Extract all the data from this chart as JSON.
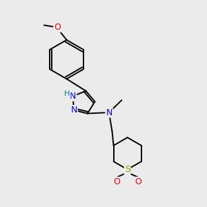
{
  "background_color": "#ebebeb",
  "bond_color": "#000000",
  "atom_colors": {
    "N": "#0000FF",
    "O": "#FF0000",
    "S": "#999900",
    "C": "#000000",
    "H": "#008080"
  },
  "lw": 1.4
}
